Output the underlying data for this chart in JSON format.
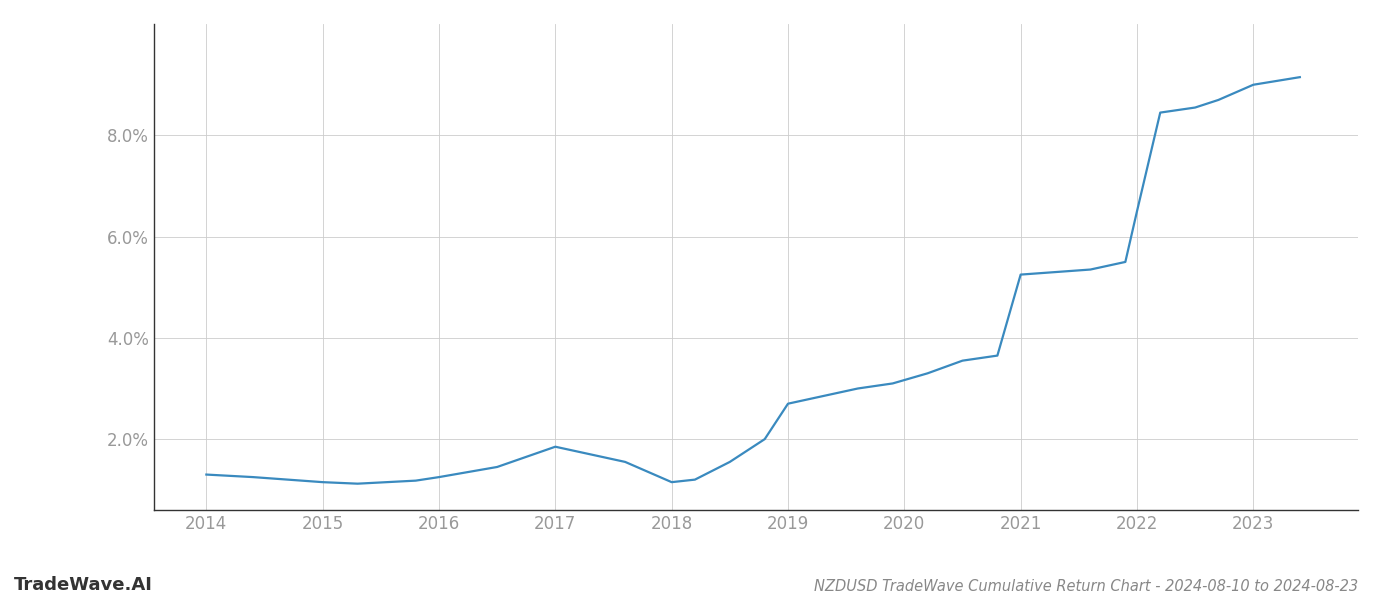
{
  "title": "NZDUSD TradeWave Cumulative Return Chart - 2024-08-10 to 2024-08-23",
  "watermark": "TradeWave.AI",
  "line_color": "#3a8abf",
  "background_color": "#ffffff",
  "grid_color": "#cccccc",
  "x_values": [
    2014.0,
    2014.4,
    2015.0,
    2015.3,
    2015.8,
    2016.0,
    2016.5,
    2017.0,
    2017.3,
    2017.6,
    2018.0,
    2018.2,
    2018.5,
    2018.8,
    2019.0,
    2019.3,
    2019.6,
    2019.9,
    2020.2,
    2020.5,
    2020.8,
    2021.0,
    2021.3,
    2021.6,
    2021.9,
    2022.0,
    2022.2,
    2022.5,
    2022.7,
    2023.0,
    2023.4
  ],
  "y_values": [
    1.3,
    1.25,
    1.15,
    1.12,
    1.18,
    1.25,
    1.45,
    1.85,
    1.7,
    1.55,
    1.15,
    1.2,
    1.55,
    2.0,
    2.7,
    2.85,
    3.0,
    3.1,
    3.3,
    3.55,
    3.65,
    5.25,
    5.3,
    5.35,
    5.5,
    6.5,
    8.45,
    8.55,
    8.7,
    9.0,
    9.15
  ],
  "xlim": [
    2013.55,
    2023.9
  ],
  "ylim": [
    0.6,
    10.2
  ],
  "yticks": [
    2.0,
    4.0,
    6.0,
    8.0
  ],
  "xticks": [
    2014,
    2015,
    2016,
    2017,
    2018,
    2019,
    2020,
    2021,
    2022,
    2023
  ],
  "title_fontsize": 10.5,
  "tick_fontsize": 12,
  "watermark_fontsize": 13,
  "line_width": 1.6
}
